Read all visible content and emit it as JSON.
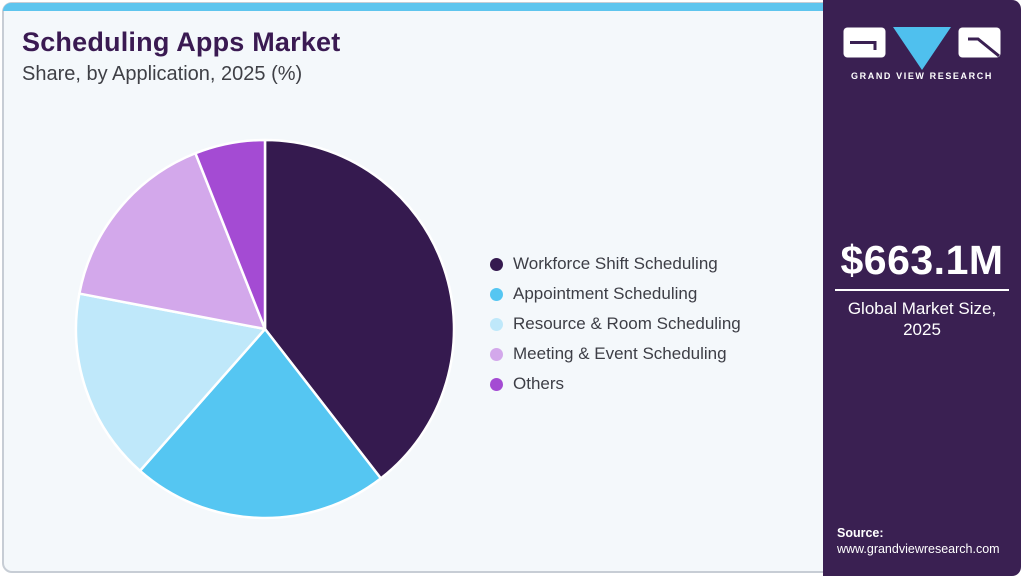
{
  "header": {
    "title": "Scheduling Apps Market",
    "subtitle": "Share, by Application, 2025 (%)"
  },
  "chart_data": {
    "type": "pie",
    "title": "Scheduling Apps Market Share, by Application, 2025 (%)",
    "unit": "%",
    "start_angle_deg": 0,
    "direction": "clockwise",
    "legend_position": "right",
    "data_labels_shown": false,
    "segments": [
      {
        "label": "Workforce Shift Scheduling",
        "value": 39.5,
        "color": "#351a4f"
      },
      {
        "label": "Appointment Scheduling",
        "value": 22.0,
        "color": "#55c6f2"
      },
      {
        "label": "Resource & Room Scheduling",
        "value": 16.5,
        "color": "#bfe8fa"
      },
      {
        "label": "Meeting & Event Scheduling",
        "value": 16.0,
        "color": "#d3a8eb"
      },
      {
        "label": "Others",
        "value": 6.0,
        "color": "#a44bd3"
      }
    ]
  },
  "sidebar": {
    "logo": {
      "brand": "GRAND VIEW RESEARCH",
      "icon": "gvr-logo"
    },
    "market_size_value": "$663.1M",
    "market_size_label": "Global Market Size, 2025",
    "source_label": "Source:",
    "source_url": "www.grandviewresearch.com"
  },
  "colors": {
    "accent_bar": "#5ec5ee",
    "card_bg": "#f4f8fb",
    "card_border": "#c7cdd5",
    "panel_bg": "#3a2052",
    "title_text": "#3a1a52",
    "body_text": "#3d3e46",
    "logo_triangle": "#4fc0ee"
  }
}
